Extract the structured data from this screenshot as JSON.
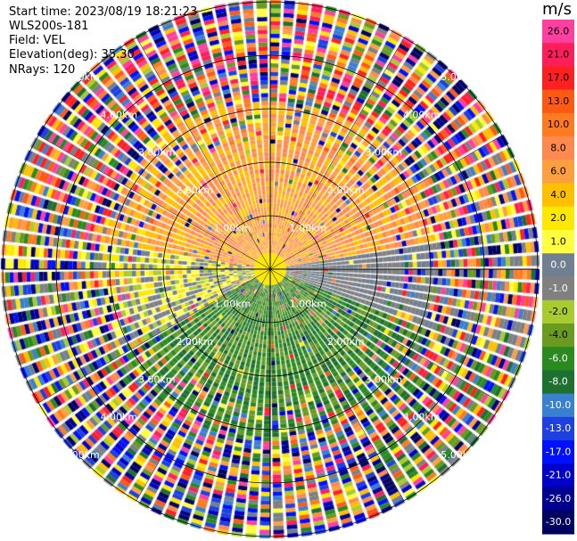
{
  "header": {
    "start_time": "Start time: 2023/08/19 18:21:23",
    "instrument": "WLS200s-181",
    "field": "Field: VEL",
    "elevation": "Elevation(deg): 35.30",
    "nrays": "NRays: 120"
  },
  "chart_data": {
    "type": "heatmap",
    "projection": "polar-ppi",
    "n_rays": 120,
    "range_ring_labels": [
      "1.00km",
      "2.00km",
      "3.00km",
      "4.00km",
      "5.00km"
    ],
    "colorbar": {
      "unit": "m/s",
      "ticks": [
        "26.0",
        "21.0",
        "17.0",
        "13.0",
        "10.0",
        "8.0",
        "6.0",
        "4.0",
        "2.0",
        "1.0",
        "0.0",
        "-1.0",
        "-2.0",
        "-4.0",
        "-6.0",
        "-8.0",
        "-10.0",
        "-13.0",
        "-17.0",
        "-21.0",
        "-26.0",
        "-30.0"
      ],
      "colors": [
        "#ff3fa0",
        "#ff1e5a",
        "#ff2020",
        "#ff5a14",
        "#ff7a20",
        "#ff8a50",
        "#ffa040",
        "#ffc000",
        "#ffe800",
        "#ffff40",
        "#708090",
        "#808080",
        "#a8cc30",
        "#6a9a20",
        "#2a8a20",
        "#1e7030",
        "#3a80d0",
        "#1e40e0",
        "#0010ff",
        "#0000c8",
        "#000090",
        "#000060"
      ]
    }
  }
}
